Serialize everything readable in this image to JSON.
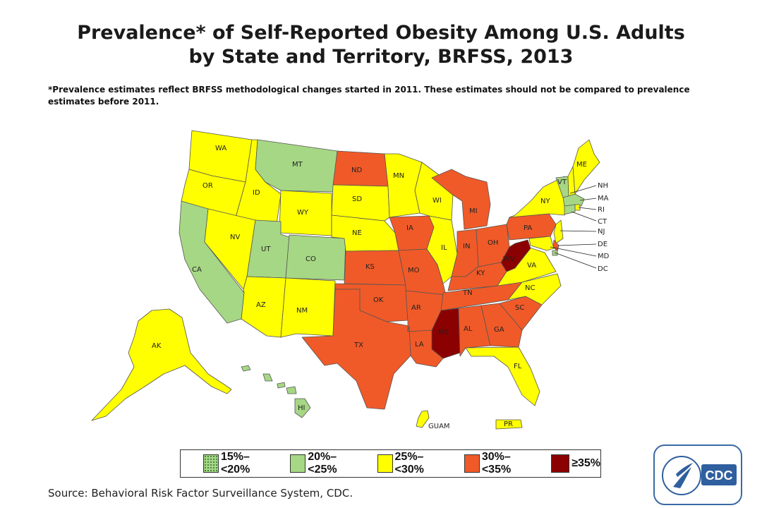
{
  "title_line1": "Prevalence* of Self-Reported Obesity Among U.S. Adults",
  "title_line2": "by State and Territory, BRFSS, 2013",
  "footnote": "*Prevalence estimates reflect BRFSS methodological changes started in 2011. These estimates should not be compared to prevalence estimates before 2011.",
  "source": "Source: Behavioral Risk Factor Surveillance System, CDC.",
  "logo_text": "CDC",
  "legend": [
    {
      "label": "15%–<20%",
      "color": "#a6d785",
      "pattern": "dots"
    },
    {
      "label": "20%–<25%",
      "color": "#a6d785"
    },
    {
      "label": "25%–<30%",
      "color": "#ffff00"
    },
    {
      "label": "30%–<35%",
      "color": "#f05a28"
    },
    {
      "label": "≥35%",
      "color": "#8b0000"
    }
  ],
  "categories": {
    "c20": "20%–<25%",
    "c25": "25%–<30%",
    "c30": "30%–<35%",
    "c35": "≥35%"
  },
  "states": {
    "WA": "c25",
    "OR": "c25",
    "CA": "c20",
    "ID": "c25",
    "NV": "c25",
    "MT": "c20",
    "WY": "c25",
    "UT": "c20",
    "CO": "c20",
    "AZ": "c25",
    "NM": "c25",
    "ND": "c30",
    "SD": "c25",
    "NE": "c25",
    "KS": "c30",
    "OK": "c30",
    "TX": "c30",
    "MN": "c25",
    "IA": "c30",
    "MO": "c30",
    "AR": "c30",
    "LA": "c30",
    "WI": "c25",
    "IL": "c25",
    "MI": "c30",
    "IN": "c30",
    "OH": "c30",
    "KY": "c30",
    "TN": "c30",
    "MS": "c35",
    "AL": "c30",
    "GA": "c30",
    "FL": "c25",
    "SC": "c30",
    "NC": "c25",
    "VA": "c25",
    "WV": "c35",
    "PA": "c30",
    "NY": "c25",
    "VT": "c20",
    "NH": "c25",
    "ME": "c25",
    "MA": "c20",
    "RI": "c25",
    "CT": "c20",
    "NJ": "c25",
    "DE": "c30",
    "MD": "c25",
    "DC": "c20",
    "AK": "c25",
    "HI": "c20",
    "GUAM": "c25",
    "PR": "c25"
  },
  "labels": {
    "WA": "WA",
    "OR": "OR",
    "CA": "CA",
    "ID": "ID",
    "NV": "NV",
    "MT": "MT",
    "WY": "WY",
    "UT": "UT",
    "CO": "CO",
    "AZ": "AZ",
    "NM": "NM",
    "ND": "ND",
    "SD": "SD",
    "NE": "NE",
    "KS": "KS",
    "OK": "OK",
    "TX": "TX",
    "MN": "MN",
    "IA": "IA",
    "MO": "MO",
    "AR": "AR",
    "LA": "LA",
    "WI": "WI",
    "IL": "IL",
    "MI": "MI",
    "IN": "IN",
    "OH": "OH",
    "KY": "KY",
    "TN": "TN",
    "MS": "MS",
    "AL": "AL",
    "GA": "GA",
    "FL": "FL",
    "SC": "SC",
    "NC": "NC",
    "VA": "VA",
    "WV": "WV",
    "PA": "PA",
    "NY": "NY",
    "VT": "VT",
    "NH": "NH",
    "ME": "ME",
    "MA": "MA",
    "RI": "RI",
    "CT": "CT",
    "NJ": "NJ",
    "DE": "DE",
    "MD": "MD",
    "DC": "DC",
    "AK": "AK",
    "HI": "HI",
    "GUAM": "GUAM",
    "PR": "PR"
  }
}
